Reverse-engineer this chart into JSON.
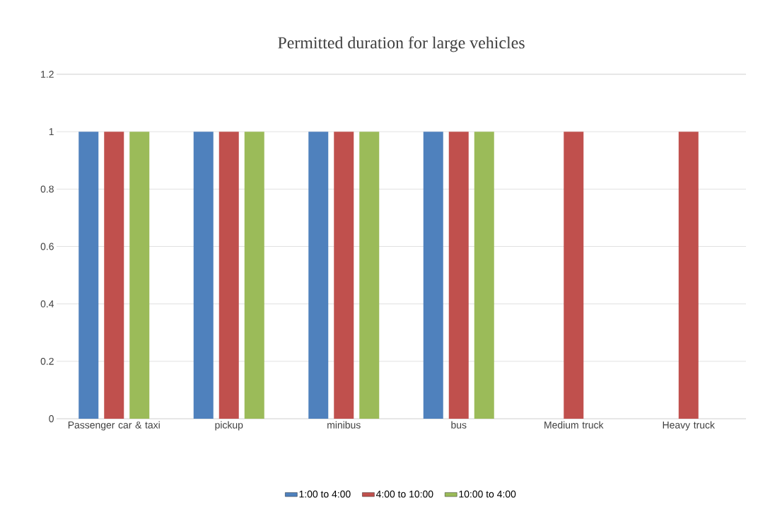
{
  "chart_data": {
    "type": "bar",
    "title": "Permitted duration for large vehicles",
    "categories": [
      "Passenger car & taxi",
      "pickup",
      "minibus",
      "bus",
      "Medium truck",
      "Heavy truck"
    ],
    "series": [
      {
        "name": "1:00 to 4:00",
        "color": "#4f81bd",
        "values": [
          1,
          1,
          1,
          1,
          0,
          0
        ]
      },
      {
        "name": "4:00 to 10:00",
        "color": "#c0504d",
        "values": [
          1,
          1,
          1,
          1,
          1,
          1
        ]
      },
      {
        "name": "10:00 to 4:00",
        "color": "#9bbb59",
        "values": [
          1,
          1,
          1,
          1,
          0,
          0
        ]
      }
    ],
    "ylim": [
      0,
      1.2
    ],
    "yticks": [
      0,
      0.2,
      0.4,
      0.6,
      0.8,
      1,
      1.2
    ],
    "grid": "y",
    "legend": "bottom"
  }
}
